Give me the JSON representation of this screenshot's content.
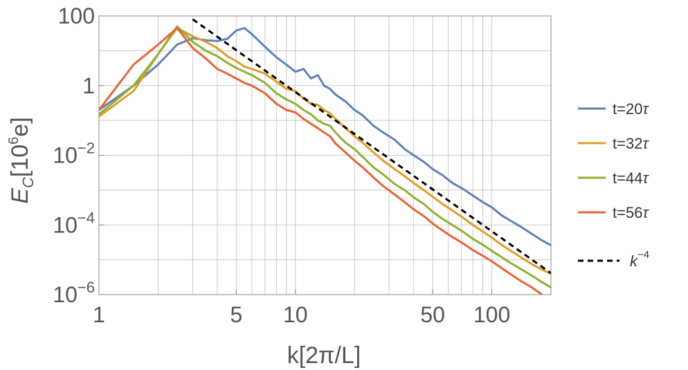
{
  "chart_data": {
    "type": "line",
    "xscale": "log",
    "yscale": "log",
    "xlim": [
      1,
      200
    ],
    "ylim": [
      1e-06,
      100
    ],
    "xlabel": "k[2π/L]",
    "ylabel": {
      "base": "E",
      "sub": "C",
      "unit_open": "[10",
      "unit_exp": "6",
      "unit_close": "e]"
    },
    "x_ticks": [
      {
        "value": 1,
        "label": "1"
      },
      {
        "value": 5,
        "label": "5"
      },
      {
        "value": 10,
        "label": "10"
      },
      {
        "value": 50,
        "label": "50"
      },
      {
        "value": 100,
        "label": "100"
      }
    ],
    "y_ticks": [
      {
        "value": 100,
        "mantissa": "100",
        "exp": ""
      },
      {
        "value": 1,
        "mantissa": "1",
        "exp": ""
      },
      {
        "value": 0.01,
        "mantissa": "10",
        "exp": "−2"
      },
      {
        "value": 0.0001,
        "mantissa": "10",
        "exp": "−4"
      },
      {
        "value": 1e-06,
        "mantissa": "10",
        "exp": "−6"
      }
    ],
    "grid": true,
    "legend_position": "right",
    "series": [
      {
        "name": "t=20",
        "tau": "τ",
        "color": "#5e81b5",
        "x": [
          1,
          1.5,
          2,
          2.5,
          3,
          3.5,
          4,
          4.5,
          5,
          5.5,
          6,
          7,
          8,
          9,
          10,
          11,
          12,
          13,
          14,
          15,
          16,
          18,
          20,
          22,
          25,
          28,
          32,
          36,
          40,
          45,
          50,
          56,
          63,
          71,
          80,
          90,
          100,
          112,
          125,
          140,
          160,
          180,
          200
        ],
        "y": [
          0.2,
          1.0,
          4.0,
          15,
          23,
          20,
          19,
          22,
          38,
          45,
          30,
          13,
          6.5,
          4.0,
          2.5,
          3.0,
          1.6,
          2.0,
          1.0,
          0.8,
          0.55,
          0.35,
          0.2,
          0.14,
          0.07,
          0.045,
          0.028,
          0.015,
          0.01,
          0.0065,
          0.004,
          0.0027,
          0.0016,
          0.0011,
          0.0007,
          0.00045,
          0.00032,
          0.00019,
          0.00013,
          9e-05,
          5.5e-05,
          3.6e-05,
          2.6e-05
        ]
      },
      {
        "name": "t=32",
        "tau": "τ",
        "color": "#e19c24",
        "x": [
          1,
          1.5,
          2,
          2.5,
          3,
          3.5,
          4,
          4.5,
          5,
          5.5,
          6,
          7,
          8,
          9,
          10,
          11,
          12,
          13,
          14,
          15,
          16,
          18,
          20,
          22,
          25,
          28,
          32,
          36,
          40,
          45,
          50,
          56,
          63,
          71,
          80,
          90,
          100,
          112,
          125,
          140,
          160,
          180,
          200
        ],
        "y": [
          0.13,
          0.7,
          8,
          45,
          26,
          18,
          12,
          7,
          5,
          3.5,
          3.0,
          2.2,
          1.3,
          0.8,
          0.7,
          0.42,
          0.3,
          0.28,
          0.2,
          0.16,
          0.11,
          0.06,
          0.035,
          0.023,
          0.012,
          0.007,
          0.004,
          0.0025,
          0.0016,
          0.001,
          0.00065,
          0.0004,
          0.00026,
          0.000165,
          0.0001,
          6.5e-05,
          4.3e-05,
          2.7e-05,
          1.8e-05,
          1.2e-05,
          7.5e-06,
          5.2e-06,
          4e-06
        ]
      },
      {
        "name": "t=44",
        "tau": "τ",
        "color": "#8fb032",
        "x": [
          1,
          1.5,
          2,
          2.5,
          3,
          3.5,
          4,
          4.5,
          5,
          5.5,
          6,
          7,
          8,
          9,
          10,
          11,
          12,
          13,
          14,
          15,
          16,
          18,
          20,
          22,
          25,
          28,
          32,
          36,
          40,
          45,
          50,
          56,
          63,
          71,
          80,
          90,
          100,
          112,
          125,
          140,
          160,
          180,
          200
        ],
        "y": [
          0.15,
          1.0,
          8,
          50,
          18,
          10,
          7,
          4.5,
          3.2,
          2.5,
          2.0,
          1.2,
          0.6,
          0.4,
          0.3,
          0.2,
          0.15,
          0.1,
          0.08,
          0.07,
          0.045,
          0.023,
          0.015,
          0.009,
          0.0045,
          0.0028,
          0.0015,
          0.001,
          0.00062,
          0.0004,
          0.00024,
          0.00015,
          0.0001,
          6.5e-05,
          4e-05,
          2.7e-05,
          1.8e-05,
          1.2e-05,
          8e-06,
          5.5e-06,
          3.5e-06,
          2.3e-06,
          1.6e-06
        ]
      },
      {
        "name": "t=56",
        "tau": "τ",
        "color": "#eb6235",
        "x": [
          1,
          1.5,
          2,
          2.5,
          3,
          3.5,
          4,
          4.5,
          5,
          5.5,
          6,
          7,
          8,
          9,
          10,
          11,
          12,
          13,
          14,
          15,
          16,
          18,
          20,
          22,
          25,
          28,
          32,
          36,
          40,
          45,
          50,
          56,
          63,
          71,
          80,
          90,
          100,
          112,
          125,
          140,
          160,
          180
        ],
        "y": [
          0.2,
          4.0,
          15,
          45,
          12,
          6,
          3,
          2.2,
          1.6,
          1.2,
          1.0,
          0.6,
          0.3,
          0.2,
          0.17,
          0.11,
          0.08,
          0.06,
          0.045,
          0.035,
          0.022,
          0.012,
          0.007,
          0.0045,
          0.0023,
          0.0013,
          0.00075,
          0.00045,
          0.00028,
          0.00018,
          0.00011,
          7e-05,
          4.5e-05,
          3e-05,
          1.9e-05,
          1.3e-05,
          9e-06,
          5.8e-06,
          3.8e-06,
          2.5e-06,
          1.6e-06,
          1e-06
        ]
      }
    ],
    "reference": {
      "label_base": "k",
      "label_exp": "−4",
      "color": "#000000",
      "dash": "8,6",
      "x": [
        3,
        200
      ],
      "y": [
        80,
        4.12e-06
      ]
    }
  }
}
